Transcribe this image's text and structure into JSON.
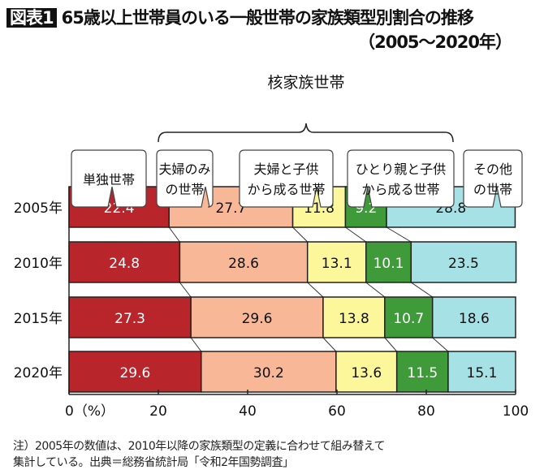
{
  "title": {
    "badge": "図表1",
    "text": "65歳以上世帯員のいる一般世帯の家族類型別割合の推移",
    "period": "（2005〜2020年）"
  },
  "group_label": "核家族世帯",
  "chart_data": {
    "type": "bar",
    "orientation": "horizontal-stacked-100",
    "categories": [
      "2005年",
      "2010年",
      "2015年",
      "2020年"
    ],
    "series": [
      {
        "name": "単独世帯",
        "color": "#b8262b",
        "text_color": "#ffffff",
        "values": [
          22.4,
          24.8,
          27.3,
          29.6
        ]
      },
      {
        "name": "夫婦のみの世帯",
        "color": "#f8b897",
        "text_color": "#111111",
        "values": [
          27.7,
          28.6,
          29.6,
          30.2
        ]
      },
      {
        "name": "夫婦と子供から成る世帯",
        "color": "#fdf79c",
        "text_color": "#111111",
        "values": [
          11.8,
          13.1,
          13.8,
          13.6
        ]
      },
      {
        "name": "ひとり親と子供から成る世帯",
        "color": "#3f9b3a",
        "text_color": "#ffffff",
        "values": [
          9.2,
          10.1,
          10.7,
          11.5
        ]
      },
      {
        "name": "その他の世帯",
        "color": "#a6e1e6",
        "text_color": "#111111",
        "values": [
          28.8,
          23.5,
          18.6,
          15.1
        ]
      }
    ],
    "legend_lines": [
      [
        "単独世帯"
      ],
      [
        "夫婦のみ",
        "の世帯"
      ],
      [
        "夫婦と子供",
        "から成る世帯"
      ],
      [
        "ひとり親と子供",
        "から成る世帯"
      ],
      [
        "その他",
        "の世帯"
      ]
    ],
    "xlim": [
      0,
      100
    ],
    "xticks": [
      0,
      20,
      40,
      60,
      80,
      100
    ],
    "xtick_labels": [
      "0（%）",
      "20",
      "40",
      "60",
      "80",
      "100"
    ],
    "data_labels": true,
    "grid": false
  },
  "note": [
    "注）2005年の数値は、2010年以降の家族類型の定義に合わせて組み替えて",
    "集計している。出典＝総務省統計局「令和2年国勢調査」"
  ]
}
